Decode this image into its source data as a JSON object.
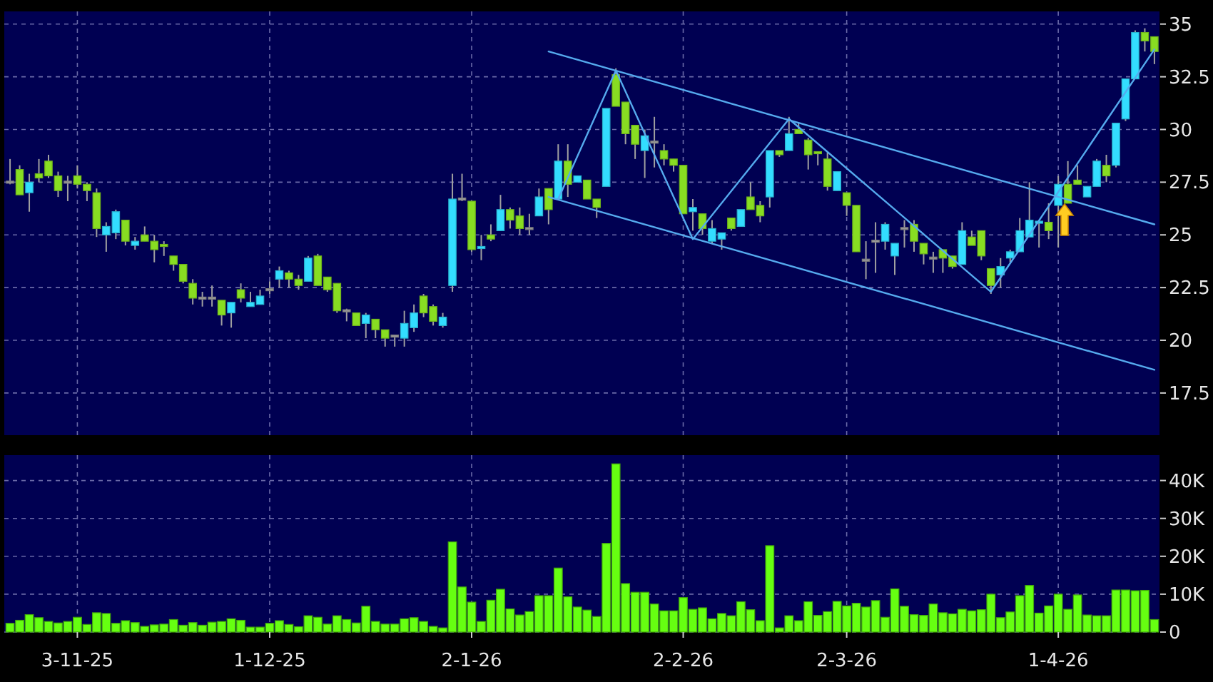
{
  "chart_data": [
    {
      "type": "candlestick",
      "tick_labels": "y",
      "grid": true,
      "ylim": [
        15.5,
        35.6
      ],
      "yticks": [
        17.5,
        20,
        22.5,
        25,
        27.5,
        30,
        32.5,
        35
      ],
      "categories": [
        null,
        null,
        null,
        null,
        null,
        null,
        null,
        null,
        null,
        null,
        null,
        null,
        null,
        null,
        null,
        null,
        null,
        null,
        null,
        null,
        null,
        null,
        null,
        null,
        null,
        null,
        null,
        null,
        null,
        null,
        null,
        null,
        null,
        null,
        null,
        null,
        null,
        null,
        null,
        null,
        null,
        null,
        null,
        null,
        null,
        null,
        null,
        null,
        null,
        null,
        null,
        null,
        null,
        null,
        null,
        null,
        null,
        null,
        null,
        null,
        null,
        null,
        null,
        null,
        null,
        null,
        null,
        null,
        null,
        null,
        null,
        null,
        null,
        null,
        null,
        null,
        null,
        null,
        null,
        null,
        null,
        null,
        null,
        null,
        null,
        null,
        null,
        null,
        null,
        null,
        null,
        null,
        null,
        null,
        null,
        null,
        null,
        null,
        null,
        null,
        null,
        null,
        null,
        null,
        null,
        null,
        null,
        null,
        null,
        null,
        null,
        null,
        null,
        null,
        null,
        null,
        null,
        null,
        null,
        null
      ],
      "ohlc": [
        [
          27.5,
          28.6,
          27.4,
          27.5
        ],
        [
          28.1,
          28.3,
          26.9,
          26.9
        ],
        [
          27.0,
          27.9,
          26.1,
          27.5
        ],
        [
          27.9,
          28.6,
          27.5,
          27.7
        ],
        [
          28.5,
          28.8,
          27.7,
          27.8
        ],
        [
          27.8,
          28.0,
          26.8,
          27.1
        ],
        [
          27.5,
          27.8,
          26.6,
          27.5
        ],
        [
          27.8,
          28.3,
          27.2,
          27.4
        ],
        [
          27.4,
          27.5,
          26.6,
          27.1
        ],
        [
          27.0,
          27.2,
          24.9,
          25.3
        ],
        [
          25.0,
          25.6,
          24.2,
          25.4
        ],
        [
          25.1,
          26.2,
          24.8,
          26.1
        ],
        [
          25.7,
          25.7,
          24.5,
          24.7
        ],
        [
          24.5,
          24.9,
          24.3,
          24.7
        ],
        [
          25.0,
          25.4,
          24.7,
          24.7
        ],
        [
          24.7,
          25.0,
          23.7,
          24.3
        ],
        [
          24.5,
          24.7,
          24.0,
          24.4
        ],
        [
          24.0,
          24.0,
          23.3,
          23.6
        ],
        [
          23.6,
          23.6,
          22.7,
          22.8
        ],
        [
          22.7,
          22.9,
          21.7,
          22.0
        ],
        [
          22.0,
          22.3,
          21.6,
          22.0
        ],
        [
          22.0,
          22.6,
          21.6,
          22.0
        ],
        [
          21.9,
          21.9,
          20.7,
          21.2
        ],
        [
          21.3,
          21.8,
          20.6,
          21.8
        ],
        [
          22.4,
          22.7,
          21.8,
          22.0
        ],
        [
          21.6,
          22.3,
          21.6,
          21.8
        ],
        [
          21.7,
          22.4,
          21.7,
          22.1
        ],
        [
          22.4,
          22.8,
          22.2,
          22.4
        ],
        [
          22.9,
          23.5,
          22.5,
          23.3
        ],
        [
          23.2,
          23.3,
          22.5,
          22.9
        ],
        [
          22.9,
          23.1,
          22.4,
          22.6
        ],
        [
          22.8,
          24.0,
          22.8,
          23.9
        ],
        [
          24.0,
          24.1,
          22.6,
          22.6
        ],
        [
          23.0,
          23.0,
          22.3,
          22.4
        ],
        [
          22.7,
          22.7,
          21.3,
          21.4
        ],
        [
          21.4,
          21.5,
          20.9,
          21.4
        ],
        [
          21.3,
          21.3,
          20.7,
          20.7
        ],
        [
          20.8,
          21.3,
          20.1,
          21.2
        ],
        [
          21.0,
          21.0,
          20.1,
          20.5
        ],
        [
          20.5,
          20.5,
          19.7,
          20.1
        ],
        [
          20.2,
          20.2,
          19.7,
          20.2
        ],
        [
          20.1,
          21.4,
          19.7,
          20.8
        ],
        [
          20.6,
          21.7,
          20.4,
          21.3
        ],
        [
          22.1,
          22.2,
          21.1,
          21.3
        ],
        [
          21.6,
          21.7,
          20.7,
          20.9
        ],
        [
          20.7,
          21.3,
          20.6,
          21.1
        ],
        [
          22.6,
          27.9,
          22.3,
          26.7
        ],
        [
          26.7,
          27.9,
          26.6,
          26.7
        ],
        [
          26.6,
          26.6,
          24.2,
          24.3
        ],
        [
          24.3,
          25.0,
          23.8,
          24.4
        ],
        [
          25.0,
          25.5,
          24.7,
          24.8
        ],
        [
          25.2,
          26.9,
          25.2,
          26.2
        ],
        [
          26.2,
          26.3,
          25.3,
          25.7
        ],
        [
          25.9,
          26.3,
          25.0,
          25.3
        ],
        [
          25.3,
          26.0,
          25.0,
          25.3
        ],
        [
          25.9,
          27.2,
          25.9,
          26.8
        ],
        [
          27.2,
          27.2,
          25.5,
          26.2
        ],
        [
          26.7,
          29.3,
          26.7,
          28.5
        ],
        [
          28.5,
          29.3,
          26.8,
          27.4
        ],
        [
          27.5,
          27.8,
          27.5,
          27.8
        ],
        [
          27.6,
          27.6,
          26.7,
          26.7
        ],
        [
          26.7,
          26.7,
          25.8,
          26.3
        ],
        [
          27.3,
          31.0,
          27.3,
          31.0
        ],
        [
          32.6,
          32.9,
          31.1,
          31.1
        ],
        [
          31.3,
          31.3,
          29.3,
          29.8
        ],
        [
          30.2,
          30.2,
          28.6,
          29.3
        ],
        [
          29.0,
          30.0,
          27.7,
          29.7
        ],
        [
          29.4,
          30.6,
          28.2,
          29.4
        ],
        [
          29.0,
          29.3,
          28.3,
          28.6
        ],
        [
          28.6,
          28.6,
          28.0,
          28.3
        ],
        [
          28.3,
          28.3,
          26.0,
          26.0
        ],
        [
          26.1,
          26.7,
          25.2,
          26.3
        ],
        [
          26.0,
          26.0,
          25.0,
          25.3
        ],
        [
          24.7,
          25.7,
          24.6,
          25.3
        ],
        [
          24.8,
          25.1,
          24.3,
          25.1
        ],
        [
          25.8,
          25.8,
          25.2,
          25.3
        ],
        [
          25.4,
          26.2,
          25.4,
          26.2
        ],
        [
          26.8,
          27.5,
          26.2,
          26.2
        ],
        [
          26.4,
          26.6,
          25.6,
          25.9
        ],
        [
          26.8,
          29.0,
          26.3,
          29.0
        ],
        [
          29.0,
          29.0,
          28.7,
          28.8
        ],
        [
          29.0,
          30.6,
          29.0,
          29.8
        ],
        [
          30.0,
          30.3,
          29.8,
          29.8
        ],
        [
          29.5,
          29.6,
          28.1,
          28.8
        ],
        [
          28.9,
          28.9,
          28.3,
          28.8
        ],
        [
          28.6,
          28.9,
          27.1,
          27.3
        ],
        [
          27.1,
          28.0,
          27.1,
          28.0
        ],
        [
          27.0,
          27.0,
          25.9,
          26.4
        ],
        [
          26.4,
          26.4,
          24.2,
          24.2
        ],
        [
          23.8,
          24.7,
          22.9,
          23.8
        ],
        [
          24.7,
          25.6,
          23.2,
          24.7
        ],
        [
          24.7,
          25.6,
          24.3,
          25.5
        ],
        [
          24.0,
          24.6,
          23.1,
          24.6
        ],
        [
          25.3,
          25.7,
          24.4,
          25.3
        ],
        [
          25.5,
          25.7,
          24.2,
          24.7
        ],
        [
          24.6,
          24.6,
          23.6,
          24.1
        ],
        [
          23.9,
          24.2,
          23.2,
          23.9
        ],
        [
          24.3,
          24.3,
          23.2,
          23.9
        ],
        [
          24.0,
          24.0,
          23.4,
          23.5
        ],
        [
          23.6,
          25.6,
          23.6,
          25.2
        ],
        [
          24.9,
          25.2,
          24.5,
          24.5
        ],
        [
          25.2,
          25.2,
          23.8,
          24.0
        ],
        [
          23.4,
          23.4,
          22.2,
          22.6
        ],
        [
          23.1,
          23.9,
          22.5,
          23.5
        ],
        [
          23.9,
          24.3,
          23.7,
          24.2
        ],
        [
          24.2,
          25.8,
          24.2,
          25.2
        ],
        [
          24.9,
          27.5,
          24.9,
          25.7
        ],
        [
          25.5,
          25.6,
          24.4,
          25.6
        ],
        [
          25.6,
          26.5,
          24.8,
          25.2
        ],
        [
          26.4,
          27.8,
          24.4,
          27.4
        ],
        [
          27.4,
          28.5,
          26.5,
          26.5
        ],
        [
          27.6,
          28.3,
          27.4,
          27.4
        ],
        [
          26.8,
          27.3,
          26.8,
          27.3
        ],
        [
          27.3,
          28.6,
          27.3,
          28.5
        ],
        [
          28.3,
          28.8,
          27.5,
          27.8
        ],
        [
          28.3,
          30.3,
          28.2,
          30.3
        ],
        [
          30.5,
          32.4,
          30.4,
          32.4
        ],
        [
          32.4,
          34.7,
          32.4,
          34.6
        ],
        [
          34.6,
          34.8,
          33.7,
          34.2
        ],
        [
          34.4,
          34.4,
          33.1,
          33.7
        ]
      ],
      "colors": [
        "#999999",
        "#88dd22",
        "#33ddff",
        "#88dd22",
        "#88dd22",
        "#88dd22",
        "#999999",
        "#88dd22",
        "#88dd22",
        "#88dd22",
        "#33ddff",
        "#33ddff",
        "#88dd22",
        "#33ddff",
        "#88dd22",
        "#88dd22",
        "#88dd22",
        "#88dd22",
        "#88dd22",
        "#88dd22",
        "#999999",
        "#999999",
        "#88dd22",
        "#33ddff",
        "#88dd22",
        "#33ddff",
        "#33ddff",
        "#999999",
        "#33ddff",
        "#88dd22",
        "#88dd22",
        "#33ddff",
        "#88dd22",
        "#88dd22",
        "#88dd22",
        "#999999",
        "#88dd22",
        "#33ddff",
        "#88dd22",
        "#88dd22",
        "#999999",
        "#33ddff",
        "#33ddff",
        "#88dd22",
        "#88dd22",
        "#33ddff",
        "#33ddff",
        "#999999",
        "#88dd22",
        "#33ddff",
        "#88dd22",
        "#33ddff",
        "#88dd22",
        "#88dd22",
        "#999999",
        "#33ddff",
        "#88dd22",
        "#33ddff",
        "#88dd22",
        "#33ddff",
        "#88dd22",
        "#88dd22",
        "#33ddff",
        "#88dd22",
        "#88dd22",
        "#88dd22",
        "#33ddff",
        "#999999",
        "#88dd22",
        "#88dd22",
        "#88dd22",
        "#33ddff",
        "#88dd22",
        "#33ddff",
        "#33ddff",
        "#88dd22",
        "#33ddff",
        "#88dd22",
        "#88dd22",
        "#33ddff",
        "#88dd22",
        "#33ddff",
        "#88dd22",
        "#88dd22",
        "#88dd22",
        "#88dd22",
        "#33ddff",
        "#88dd22",
        "#88dd22",
        "#999999",
        "#999999",
        "#33ddff",
        "#33ddff",
        "#999999",
        "#88dd22",
        "#88dd22",
        "#999999",
        "#88dd22",
        "#88dd22",
        "#33ddff",
        "#88dd22",
        "#88dd22",
        "#88dd22",
        "#33ddff",
        "#33ddff",
        "#33ddff",
        "#33ddff",
        "#33ddff",
        "#88dd22",
        "#33ddff",
        "#88dd22",
        "#88dd22",
        "#33ddff",
        "#33ddff",
        "#88dd22",
        "#33ddff",
        "#33ddff",
        "#33ddff",
        "#88dd22",
        "#88dd22"
      ],
      "series": [
        {
          "type": "line",
          "color": "#55aaee",
          "values": [
            null,
            null,
            null,
            null,
            null,
            null,
            null,
            null,
            null,
            null,
            null,
            null,
            null,
            null,
            null,
            null,
            null,
            null,
            null,
            null,
            null,
            null,
            null,
            null,
            null,
            null,
            null,
            null,
            null,
            null,
            null,
            null,
            null,
            null,
            null,
            null,
            null,
            null,
            null,
            null,
            null,
            null,
            null,
            null,
            null,
            null,
            null,
            null,
            null,
            null,
            null,
            null,
            null,
            null,
            null,
            null,
            33.7,
            null,
            null,
            null,
            null,
            null,
            null,
            null,
            null,
            null,
            null,
            null,
            null,
            null,
            null,
            null,
            null,
            null,
            null,
            null,
            null,
            null,
            null,
            null,
            null,
            null,
            null,
            null,
            null,
            null,
            null,
            null,
            null,
            null,
            null,
            null,
            null,
            null,
            null,
            null,
            null,
            null,
            null,
            null,
            null,
            null,
            null,
            null,
            null,
            null,
            null,
            null,
            null,
            null,
            null,
            null,
            null,
            null,
            null,
            null,
            null,
            null,
            null,
            25.5
          ]
        },
        {
          "type": "line",
          "color": "#55aaee",
          "values": [
            null,
            null,
            null,
            null,
            null,
            null,
            null,
            null,
            null,
            null,
            null,
            null,
            null,
            null,
            null,
            null,
            null,
            null,
            null,
            null,
            null,
            null,
            null,
            null,
            null,
            null,
            null,
            null,
            null,
            null,
            null,
            null,
            null,
            null,
            null,
            null,
            null,
            null,
            null,
            null,
            null,
            null,
            null,
            null,
            null,
            null,
            null,
            null,
            null,
            null,
            null,
            null,
            null,
            null,
            null,
            null,
            26.8,
            null,
            null,
            null,
            null,
            null,
            null,
            null,
            null,
            null,
            null,
            null,
            null,
            null,
            null,
            null,
            null,
            null,
            null,
            null,
            null,
            null,
            null,
            null,
            null,
            null,
            null,
            null,
            null,
            null,
            null,
            null,
            null,
            null,
            null,
            null,
            null,
            null,
            null,
            null,
            null,
            null,
            null,
            null,
            null,
            null,
            null,
            null,
            null,
            null,
            null,
            null,
            null,
            null,
            null,
            null,
            null,
            null,
            null,
            null,
            null,
            null,
            null,
            18.6
          ]
        },
        {
          "type": "line",
          "color": "#55aaee",
          "values": [
            null,
            null,
            null,
            null,
            null,
            null,
            null,
            null,
            null,
            null,
            null,
            null,
            null,
            null,
            null,
            null,
            null,
            null,
            null,
            null,
            null,
            null,
            null,
            null,
            null,
            null,
            null,
            null,
            null,
            null,
            null,
            null,
            null,
            null,
            null,
            null,
            null,
            null,
            null,
            null,
            null,
            null,
            null,
            null,
            null,
            null,
            null,
            null,
            null,
            null,
            null,
            null,
            null,
            null,
            null,
            null,
            null,
            26.7,
            null,
            null,
            null,
            null,
            null,
            32.8,
            null,
            null,
            null,
            null,
            null,
            null,
            null,
            24.8,
            null,
            null,
            null,
            null,
            null,
            null,
            null,
            null,
            null,
            30.5,
            null,
            null,
            null,
            null,
            null,
            null,
            null,
            null,
            null,
            null,
            null,
            null,
            null,
            null,
            null,
            null,
            null,
            null,
            null,
            null,
            22.3,
            null,
            null,
            null,
            null,
            null,
            null,
            null,
            null,
            null,
            null,
            null,
            null,
            null,
            null,
            null,
            null,
            33.8
          ]
        }
      ]
    },
    {
      "type": "bar",
      "grid": true,
      "color": "#66ff11",
      "ylim": [
        0,
        46700
      ],
      "yticks": [
        0,
        {
          "value": 10000,
          "label": "10K"
        },
        {
          "value": 20000,
          "label": "20K"
        },
        {
          "value": 30000,
          "label": "30K"
        },
        {
          "value": 40000,
          "label": "40K"
        }
      ],
      "categories": [
        null,
        null,
        null,
        null,
        null,
        null,
        null,
        "3-11-25",
        null,
        null,
        null,
        null,
        null,
        null,
        null,
        null,
        null,
        null,
        null,
        null,
        null,
        null,
        null,
        null,
        null,
        null,
        null,
        "1-12-25",
        null,
        null,
        null,
        null,
        null,
        null,
        null,
        null,
        null,
        null,
        null,
        null,
        null,
        null,
        null,
        null,
        null,
        null,
        null,
        null,
        "2-1-26",
        null,
        null,
        null,
        null,
        null,
        null,
        null,
        null,
        null,
        null,
        null,
        null,
        null,
        null,
        null,
        null,
        null,
        null,
        null,
        null,
        null,
        "2-2-26",
        null,
        null,
        null,
        null,
        null,
        null,
        null,
        null,
        null,
        null,
        null,
        null,
        null,
        null,
        null,
        null,
        "2-3-26",
        null,
        null,
        null,
        null,
        null,
        null,
        null,
        null,
        null,
        null,
        null,
        null,
        null,
        null,
        null,
        null,
        null,
        null,
        null,
        null,
        null,
        "1-4-26",
        null,
        null,
        null,
        null,
        null,
        null,
        null,
        null,
        null,
        null
      ],
      "values": [
        2300,
        3100,
        4600,
        3800,
        2800,
        2400,
        2800,
        3900,
        2000,
        5100,
        4900,
        2300,
        3000,
        2500,
        1500,
        1900,
        2100,
        3300,
        1800,
        2500,
        1800,
        2600,
        2800,
        3500,
        3100,
        1300,
        1300,
        2300,
        3000,
        2000,
        1400,
        4300,
        3900,
        2100,
        4300,
        3300,
        2400,
        6800,
        2800,
        2100,
        2100,
        3500,
        3800,
        2800,
        1500,
        1100,
        23800,
        11900,
        7900,
        2800,
        8400,
        11300,
        6100,
        4500,
        5400,
        9600,
        9600,
        16900,
        9300,
        6600,
        5800,
        4100,
        23400,
        44400,
        12800,
        10500,
        10500,
        7400,
        5600,
        5600,
        9100,
        6000,
        6400,
        3500,
        4900,
        4300,
        8000,
        5900,
        3000,
        22800,
        1100,
        4300,
        3000,
        8000,
        4400,
        5400,
        8100,
        6900,
        7600,
        6600,
        8300,
        3900,
        11400,
        6800,
        4600,
        4400,
        7400,
        5100,
        4800,
        6000,
        5600,
        5900,
        10000,
        3800,
        5300,
        9600,
        12300,
        5000,
        6900,
        10000,
        6000,
        9800,
        4500,
        4300,
        4300,
        11100,
        11100,
        10900,
        11000,
        3300
      ]
    }
  ]
}
